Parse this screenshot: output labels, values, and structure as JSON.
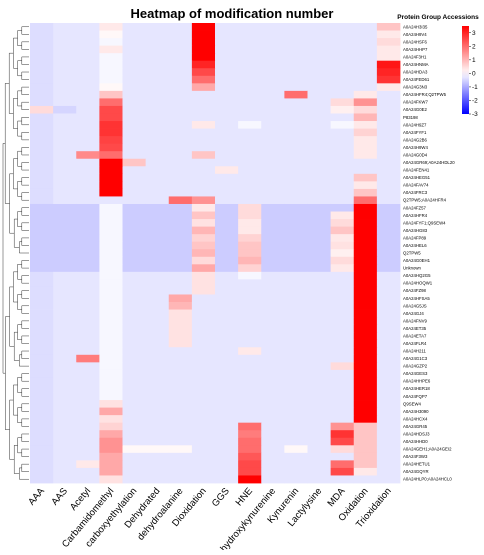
{
  "chart_data": {
    "type": "heatmap",
    "title": "Heatmap of modification number",
    "legend_title": "Protein Group Accessions",
    "color_scale": {
      "ticks": [
        3,
        2,
        1,
        0,
        -1,
        -2,
        -3
      ],
      "range": [
        -3,
        3.5
      ],
      "low_color": "#0000ff",
      "mid_color": "#ffffff",
      "high_color": "#ff0000"
    },
    "columns": [
      "AAA",
      "AAS",
      "Acetyl",
      "Carbamidomethyl",
      "carboxyethylation",
      "Dehydrated",
      "dehydroalanine",
      "Dioxidation",
      "GGS",
      "HNE",
      "hydroxykynurenine",
      "Kynurenin",
      "Lactylysine",
      "MDA",
      "Oxidation",
      "Trioxidation"
    ],
    "rows": [
      "A0A24H3I35",
      "A0A24H9V4",
      "A0A24HSF6",
      "A0A24HHP7",
      "A0A24F3H1",
      "A0A24HNMA",
      "A0A24HDA3",
      "A0A24FED61",
      "A0A24G3N3",
      "A0A24HFR4;Q2TPW5",
      "A0A24FKW7",
      "A0A24G0E2",
      "P83198",
      "A0A24H9Z7",
      "A0A24FYF1",
      "A0A24G2B6",
      "A0A24H9W4",
      "A0A24G0D4",
      "A0A24GR69;A0A24HDL20",
      "A0A24FEN41",
      "A0A24HEG51",
      "A0A24FAV74",
      "A0A24FRC3",
      "Q2TPW5;A0A24HFR4",
      "A0A24FZ57",
      "A0A24HFR4",
      "A0A24FYF1;Q9SEW4",
      "A0A24HG83",
      "A0A24FP89",
      "A0A24HEL6",
      "Q2TPW5",
      "A0A24G0EH1",
      "Unknown",
      "A0A24HQ2G5",
      "A0A24HOQW1",
      "A0A24FZ98",
      "A0A24HFSA5",
      "A0A24G5JS",
      "A0A24GJ4",
      "A0A24FNV9",
      "A0A24ET35",
      "A0A24ETA7",
      "A0A24FLR4",
      "A0A24H211",
      "A0A24G1C3",
      "A0A24GZP2",
      "A0A24GES3",
      "A0A24HHPE6",
      "A0A24HER18",
      "A0A24FQP7",
      "Q9SEW4",
      "A0A24H3090",
      "A0A24HCX4",
      "A0A24GR45",
      "A0A24HDSJ3",
      "A0A24HHD0",
      "A0A24GEH1;A0A24GEI2",
      "A0A24F3W3",
      "A0A24HETU1",
      "A0A24GQYR",
      "A0A24HLP0;A0A24HCL0"
    ],
    "values": [
      [
        -0.4,
        -0.3,
        -0.3,
        0.3,
        -0.3,
        -0.3,
        -0.3,
        3.5,
        -0.3,
        -0.3,
        -0.3,
        -0.3,
        -0.3,
        -0.3,
        -0.3,
        0.8
      ],
      [
        -0.4,
        -0.3,
        -0.3,
        0.1,
        -0.3,
        -0.3,
        -0.3,
        3.5,
        -0.3,
        -0.3,
        -0.3,
        -0.3,
        -0.3,
        -0.3,
        -0.3,
        0.3
      ],
      [
        -0.4,
        -0.3,
        -0.3,
        -0.1,
        -0.3,
        -0.3,
        -0.3,
        3.5,
        -0.3,
        -0.3,
        -0.3,
        -0.3,
        -0.3,
        -0.3,
        -0.3,
        0.5
      ],
      [
        -0.4,
        -0.3,
        -0.3,
        0.3,
        -0.3,
        -0.3,
        -0.3,
        3.5,
        -0.3,
        -0.3,
        -0.3,
        -0.3,
        -0.3,
        -0.3,
        -0.3,
        0.3
      ],
      [
        -0.4,
        -0.3,
        -0.3,
        -0.1,
        -0.3,
        -0.3,
        -0.3,
        3.5,
        -0.3,
        -0.3,
        -0.3,
        -0.3,
        -0.3,
        -0.3,
        -0.3,
        0.3
      ],
      [
        -0.4,
        -0.3,
        -0.3,
        -0.1,
        -0.3,
        -0.3,
        -0.3,
        3.0,
        -0.3,
        -0.3,
        -0.3,
        -0.3,
        -0.3,
        -0.3,
        -0.3,
        3.2
      ],
      [
        -0.4,
        -0.3,
        -0.3,
        -0.1,
        -0.3,
        -0.3,
        -0.3,
        2.5,
        -0.3,
        -0.3,
        -0.3,
        -0.3,
        -0.3,
        -0.3,
        -0.3,
        3.0
      ],
      [
        -0.4,
        -0.3,
        -0.3,
        -0.1,
        -0.3,
        -0.3,
        -0.3,
        2.0,
        -0.3,
        -0.3,
        -0.3,
        -0.3,
        -0.3,
        -0.3,
        -0.3,
        2.8
      ],
      [
        -0.4,
        -0.3,
        -0.3,
        0.1,
        -0.3,
        -0.3,
        -0.3,
        1.2,
        -0.3,
        -0.3,
        -0.3,
        -0.3,
        -0.3,
        -0.3,
        -0.3,
        0.3
      ],
      [
        -0.4,
        -0.3,
        -0.3,
        0.8,
        -0.3,
        -0.3,
        -0.3,
        -0.3,
        -0.3,
        -0.3,
        -0.3,
        2.0,
        -0.3,
        -0.3,
        0.3,
        -0.3
      ],
      [
        -0.4,
        -0.3,
        -0.3,
        2.0,
        -0.3,
        -0.3,
        -0.3,
        -0.3,
        -0.3,
        -0.3,
        -0.3,
        -0.3,
        -0.3,
        0.5,
        1.5,
        -0.3
      ],
      [
        0.5,
        -0.5,
        -0.3,
        2.5,
        -0.3,
        -0.3,
        -0.3,
        -0.3,
        -0.3,
        -0.3,
        -0.3,
        -0.3,
        -0.3,
        0.2,
        0.5,
        -0.3
      ],
      [
        -0.4,
        -0.3,
        -0.3,
        2.5,
        -0.3,
        -0.3,
        -0.3,
        -0.3,
        -0.3,
        -0.3,
        -0.3,
        -0.3,
        -0.3,
        -0.3,
        1.0,
        -0.3
      ],
      [
        -0.4,
        -0.3,
        -0.3,
        2.8,
        -0.3,
        -0.3,
        -0.3,
        0.3,
        -0.3,
        -0.1,
        -0.3,
        -0.3,
        -0.3,
        -0.1,
        0.3,
        -0.3
      ],
      [
        -0.4,
        -0.3,
        -0.3,
        2.8,
        -0.3,
        -0.3,
        -0.3,
        -0.3,
        -0.3,
        -0.3,
        -0.3,
        -0.3,
        -0.3,
        -0.3,
        0.6,
        -0.3
      ],
      [
        -0.4,
        -0.3,
        -0.3,
        2.6,
        -0.3,
        -0.3,
        -0.3,
        -0.3,
        -0.3,
        -0.3,
        -0.3,
        -0.3,
        -0.3,
        -0.3,
        0.3,
        -0.3
      ],
      [
        -0.4,
        -0.3,
        -0.3,
        2.5,
        -0.3,
        -0.3,
        -0.3,
        -0.3,
        -0.3,
        -0.3,
        -0.3,
        -0.3,
        -0.3,
        -0.3,
        0.3,
        -0.3
      ],
      [
        -0.4,
        -0.3,
        1.6,
        2.0,
        -0.3,
        -0.3,
        -0.3,
        0.8,
        -0.3,
        -0.3,
        -0.3,
        -0.3,
        -0.3,
        -0.3,
        0.3,
        -0.3
      ],
      [
        -0.4,
        -0.3,
        -0.3,
        3.5,
        0.8,
        -0.3,
        -0.3,
        -0.3,
        -0.3,
        -0.3,
        -0.3,
        -0.3,
        -0.3,
        -0.3,
        -0.3,
        -0.3
      ],
      [
        -0.4,
        -0.3,
        -0.3,
        3.5,
        -0.3,
        -0.3,
        -0.3,
        -0.3,
        0.3,
        -0.3,
        -0.3,
        -0.3,
        -0.3,
        -0.3,
        -0.3,
        -0.3
      ],
      [
        -0.4,
        -0.3,
        -0.3,
        3.5,
        -0.3,
        -0.3,
        -0.3,
        -0.3,
        -0.3,
        -0.3,
        -0.3,
        -0.3,
        -0.3,
        -0.3,
        0.8,
        -0.3
      ],
      [
        -0.4,
        -0.3,
        -0.3,
        3.5,
        -0.3,
        -0.3,
        -0.3,
        -0.3,
        -0.3,
        -0.3,
        -0.3,
        -0.3,
        -0.3,
        -0.3,
        0.3,
        -0.3
      ],
      [
        -0.4,
        -0.3,
        -0.3,
        3.5,
        -0.3,
        -0.3,
        -0.3,
        -0.3,
        -0.3,
        -0.3,
        -0.3,
        -0.3,
        -0.3,
        -0.3,
        0.8,
        -0.3
      ],
      [
        -0.4,
        -0.3,
        -0.3,
        -0.3,
        -0.3,
        -0.3,
        2.0,
        1.5,
        -0.3,
        -0.3,
        -0.3,
        -0.3,
        -0.3,
        -0.3,
        2.0,
        -0.3
      ],
      [
        -0.6,
        -0.6,
        -0.6,
        -0.1,
        -0.6,
        -0.6,
        -0.6,
        0.3,
        -0.6,
        0.5,
        -0.6,
        -0.6,
        -0.6,
        -0.6,
        3.5,
        -0.6
      ],
      [
        -0.6,
        -0.6,
        -0.6,
        -0.1,
        -0.6,
        -0.6,
        -0.6,
        0.8,
        -0.6,
        0.5,
        -0.6,
        -0.6,
        -0.6,
        0.3,
        3.5,
        -0.6
      ],
      [
        -0.6,
        -0.6,
        -0.6,
        -0.1,
        -0.6,
        -0.6,
        -0.6,
        0.4,
        -0.6,
        0.3,
        -0.6,
        -0.6,
        -0.6,
        0.5,
        3.5,
        -0.6
      ],
      [
        -0.6,
        -0.6,
        -0.6,
        -0.1,
        -0.6,
        -0.6,
        -0.6,
        1.0,
        -0.6,
        0.3,
        -0.6,
        -0.6,
        -0.6,
        0.8,
        3.5,
        -0.6
      ],
      [
        -0.6,
        -0.6,
        -0.6,
        -0.1,
        -0.6,
        -0.6,
        -0.6,
        0.6,
        -0.6,
        0.6,
        -0.6,
        -0.6,
        -0.6,
        0.3,
        3.5,
        -0.6
      ],
      [
        -0.6,
        -0.6,
        -0.6,
        -0.1,
        -0.6,
        -0.6,
        -0.6,
        0.8,
        -0.6,
        0.8,
        -0.6,
        -0.6,
        -0.6,
        0.4,
        3.5,
        -0.6
      ],
      [
        -0.6,
        -0.6,
        -0.6,
        -0.1,
        -0.6,
        -0.6,
        -0.6,
        1.0,
        -0.6,
        0.8,
        -0.6,
        -0.6,
        -0.6,
        0.2,
        3.5,
        -0.6
      ],
      [
        -0.6,
        -0.6,
        -0.6,
        -0.1,
        -0.6,
        -0.6,
        -0.6,
        0.5,
        -0.6,
        1.0,
        -0.6,
        -0.6,
        -0.6,
        0.5,
        3.5,
        -0.6
      ],
      [
        -0.6,
        -0.6,
        -0.6,
        -0.1,
        -0.6,
        -0.6,
        -0.6,
        1.2,
        -0.6,
        0.6,
        -0.6,
        -0.6,
        -0.6,
        0.3,
        3.5,
        -0.6
      ],
      [
        -0.4,
        -0.3,
        -0.3,
        -0.1,
        -0.3,
        -0.3,
        -0.3,
        0.4,
        -0.3,
        -0.1,
        -0.3,
        -0.3,
        -0.3,
        -0.3,
        3.5,
        -0.3
      ],
      [
        -0.4,
        -0.3,
        -0.3,
        -0.1,
        -0.3,
        -0.3,
        -0.3,
        0.4,
        -0.3,
        -0.3,
        -0.3,
        -0.3,
        -0.3,
        -0.3,
        3.5,
        -0.3
      ],
      [
        -0.4,
        -0.3,
        -0.3,
        -0.1,
        -0.3,
        -0.3,
        -0.3,
        0.4,
        -0.3,
        -0.3,
        -0.3,
        -0.3,
        -0.3,
        -0.3,
        3.5,
        -0.3
      ],
      [
        -0.4,
        -0.3,
        -0.3,
        -0.1,
        -0.3,
        -0.3,
        1.2,
        -0.3,
        -0.3,
        -0.3,
        -0.3,
        -0.3,
        -0.3,
        -0.3,
        3.5,
        -0.3
      ],
      [
        -0.4,
        -0.3,
        -0.3,
        -0.1,
        -0.3,
        -0.3,
        1.0,
        -0.3,
        -0.3,
        -0.3,
        -0.3,
        -0.3,
        -0.3,
        -0.3,
        3.5,
        -0.3
      ],
      [
        -0.4,
        -0.3,
        -0.3,
        -0.1,
        -0.3,
        -0.3,
        0.4,
        -0.3,
        -0.3,
        -0.3,
        -0.3,
        -0.3,
        -0.3,
        -0.3,
        3.5,
        -0.3
      ],
      [
        -0.4,
        -0.3,
        -0.3,
        -0.1,
        -0.3,
        -0.3,
        0.4,
        -0.3,
        -0.3,
        -0.3,
        -0.3,
        -0.3,
        -0.3,
        -0.3,
        3.5,
        -0.3
      ],
      [
        -0.4,
        -0.3,
        -0.3,
        -0.1,
        -0.3,
        -0.3,
        0.4,
        -0.3,
        -0.3,
        -0.3,
        -0.3,
        -0.3,
        -0.3,
        -0.3,
        3.5,
        -0.3
      ],
      [
        -0.4,
        -0.3,
        -0.3,
        -0.1,
        -0.3,
        -0.3,
        0.4,
        -0.3,
        -0.3,
        -0.3,
        -0.3,
        -0.3,
        -0.3,
        -0.3,
        3.5,
        -0.3
      ],
      [
        -0.4,
        -0.3,
        -0.3,
        -0.1,
        -0.3,
        -0.3,
        0.4,
        -0.3,
        -0.3,
        -0.3,
        -0.3,
        -0.3,
        -0.3,
        -0.3,
        3.5,
        -0.3
      ],
      [
        -0.4,
        -0.3,
        -0.3,
        -0.1,
        -0.3,
        -0.3,
        -0.3,
        -0.3,
        -0.3,
        0.3,
        -0.3,
        -0.3,
        -0.3,
        -0.3,
        3.5,
        -0.3
      ],
      [
        -0.4,
        -0.3,
        1.8,
        -0.1,
        -0.3,
        -0.3,
        -0.3,
        -0.3,
        -0.3,
        -0.3,
        -0.3,
        -0.3,
        -0.3,
        -0.3,
        3.5,
        -0.3
      ],
      [
        -0.4,
        -0.3,
        -0.3,
        -0.1,
        -0.3,
        -0.3,
        -0.3,
        -0.3,
        -0.3,
        -0.3,
        -0.3,
        -0.3,
        -0.3,
        0.5,
        3.5,
        -0.3
      ],
      [
        -0.4,
        -0.3,
        -0.3,
        -0.1,
        -0.3,
        -0.3,
        -0.3,
        -0.3,
        -0.3,
        -0.3,
        -0.3,
        -0.3,
        -0.3,
        -0.3,
        3.5,
        -0.3
      ],
      [
        -0.4,
        -0.3,
        -0.3,
        -0.1,
        -0.3,
        -0.3,
        -0.3,
        -0.3,
        -0.3,
        -0.3,
        -0.3,
        -0.3,
        -0.3,
        -0.3,
        3.5,
        -0.3
      ],
      [
        -0.4,
        -0.3,
        -0.3,
        -0.1,
        -0.3,
        -0.3,
        -0.3,
        -0.3,
        -0.3,
        -0.3,
        -0.3,
        -0.3,
        -0.3,
        -0.3,
        3.5,
        -0.3
      ],
      [
        -0.4,
        -0.3,
        -0.3,
        -0.1,
        -0.3,
        -0.3,
        -0.3,
        -0.3,
        -0.3,
        -0.3,
        -0.3,
        -0.3,
        -0.3,
        -0.3,
        3.5,
        -0.3
      ],
      [
        -0.4,
        -0.3,
        -0.3,
        0.4,
        -0.3,
        -0.3,
        -0.3,
        -0.3,
        -0.3,
        -0.3,
        -0.3,
        -0.3,
        -0.3,
        -0.3,
        3.5,
        -0.3
      ],
      [
        -0.4,
        -0.3,
        -0.3,
        1.2,
        -0.3,
        -0.3,
        -0.3,
        -0.3,
        -0.3,
        -0.3,
        -0.3,
        -0.3,
        -0.3,
        -0.3,
        3.5,
        -0.3
      ],
      [
        -0.4,
        -0.3,
        -0.3,
        0.4,
        -0.3,
        -0.3,
        -0.3,
        -0.3,
        -0.3,
        -0.3,
        -0.3,
        -0.3,
        -0.3,
        -0.3,
        3.5,
        -0.3
      ],
      [
        -0.4,
        -0.3,
        -0.3,
        0.6,
        -0.3,
        -0.3,
        -0.3,
        -0.3,
        -0.3,
        2.0,
        -0.3,
        -0.3,
        -0.3,
        1.5,
        0.8,
        -0.3
      ],
      [
        -0.4,
        -0.3,
        -0.3,
        1.2,
        -0.3,
        -0.3,
        -0.3,
        -0.3,
        -0.3,
        1.8,
        -0.3,
        -0.3,
        -0.3,
        2.8,
        0.8,
        -0.3
      ],
      [
        -0.4,
        -0.3,
        -0.3,
        1.5,
        -0.3,
        -0.3,
        -0.3,
        -0.3,
        -0.3,
        2.0,
        -0.3,
        -0.3,
        -0.3,
        2.5,
        0.8,
        -0.3
      ],
      [
        -0.4,
        -0.3,
        -0.3,
        1.5,
        0.1,
        0.1,
        0.1,
        -0.3,
        -0.3,
        2.0,
        -0.3,
        0.1,
        -0.3,
        0.5,
        0.8,
        -0.3
      ],
      [
        -0.4,
        -0.3,
        -0.3,
        1.2,
        -0.3,
        -0.3,
        -0.3,
        -0.3,
        -0.3,
        2.3,
        -0.3,
        -0.3,
        -0.3,
        -0.3,
        0.8,
        -0.3
      ],
      [
        -0.4,
        -0.3,
        0.3,
        1.2,
        -0.3,
        -0.3,
        -0.3,
        -0.3,
        -0.3,
        2.5,
        -0.3,
        -0.3,
        -0.3,
        2.0,
        0.8,
        -0.3
      ],
      [
        -0.4,
        -0.3,
        -0.3,
        1.2,
        -0.3,
        -0.3,
        -0.3,
        -0.3,
        -0.3,
        2.5,
        -0.3,
        -0.3,
        -0.3,
        2.5,
        0.3,
        -0.3
      ],
      [
        -0.4,
        -0.3,
        -0.3,
        0.4,
        -0.3,
        -0.3,
        -0.3,
        -0.3,
        -0.3,
        3.5,
        -0.3,
        -0.3,
        -0.3,
        -0.3,
        -0.3,
        -0.3
      ]
    ]
  }
}
